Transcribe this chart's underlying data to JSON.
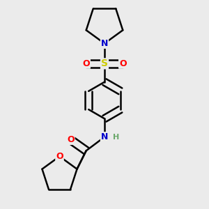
{
  "background_color": "#ebebeb",
  "atom_colors": {
    "C": "#000000",
    "N": "#0000cc",
    "O": "#ff0000",
    "S": "#cccc00",
    "H": "#6aa86a"
  },
  "bond_color": "#000000",
  "bond_width": 1.8,
  "dbo": 0.018,
  "figsize": [
    3.0,
    3.0
  ],
  "dpi": 100,
  "xlim": [
    0.1,
    0.9
  ],
  "ylim": [
    0.02,
    0.98
  ]
}
